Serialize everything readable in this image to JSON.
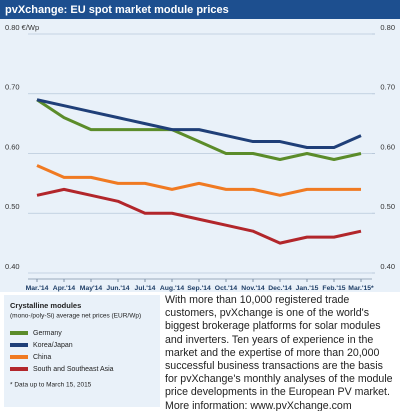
{
  "chart_data": {
    "type": "line",
    "title": "pvXchange: EU spot market module prices",
    "categories": [
      "Mar.'14",
      "Apr.'14",
      "May'14",
      "Jun.'14",
      "Jul.'14",
      "Aug.'14",
      "Sep.'14",
      "Oct.'14",
      "Nov.'14",
      "Dec.'14",
      "Jan.'15",
      "Feb.'15",
      "Mar.'15*"
    ],
    "series": [
      {
        "name": "Germany",
        "color": "#5b8c2a",
        "values": [
          0.69,
          0.66,
          0.64,
          0.64,
          0.64,
          0.64,
          0.62,
          0.6,
          0.6,
          0.59,
          0.6,
          0.59,
          0.6
        ]
      },
      {
        "name": "Korea/Japan",
        "color": "#1f3f78",
        "values": [
          0.69,
          0.68,
          0.67,
          0.66,
          0.65,
          0.64,
          0.64,
          0.63,
          0.62,
          0.62,
          0.61,
          0.61,
          0.63
        ]
      },
      {
        "name": "China",
        "color": "#f07a22",
        "values": [
          0.58,
          0.56,
          0.56,
          0.55,
          0.55,
          0.54,
          0.55,
          0.54,
          0.54,
          0.53,
          0.54,
          0.54,
          0.54
        ]
      },
      {
        "name": "South and Southeast Asia",
        "color": "#b2262b",
        "values": [
          0.53,
          0.54,
          0.53,
          0.52,
          0.5,
          0.5,
          0.49,
          0.48,
          0.47,
          0.45,
          0.46,
          0.46,
          0.47
        ]
      }
    ],
    "ylim": [
      0.4,
      0.8
    ],
    "yticks": [
      {
        "value": 0.4,
        "label": "0.40"
      },
      {
        "value": 0.5,
        "label": "0.50"
      },
      {
        "value": 0.6,
        "label": "0.60"
      },
      {
        "value": 0.7,
        "label": "0.70"
      },
      {
        "value": 0.8,
        "label": "0.80 €/Wp"
      }
    ],
    "y2lim": [
      0.4,
      0.8
    ],
    "y2ticks": [
      {
        "value": 0.4,
        "label": "0.40"
      },
      {
        "value": 0.5,
        "label": "0.50"
      },
      {
        "value": 0.6,
        "label": "0.60"
      },
      {
        "value": 0.7,
        "label": "0.70"
      },
      {
        "value": 0.8,
        "label": "0.80"
      }
    ],
    "grid": true,
    "legend_title": "Crystalline modules",
    "legend_subtitle": "(mono-/poly-Si) average net prices (EUR/Wp)",
    "note": "* Data up to March 15, 2015",
    "description": "With more than 10,000 registered trade customers, pvXchange is one of the world's biggest brokerage platforms for solar modules and inverters. Ten years of experience in the market and the expertise of more than 20,000 successful business transactions are the basis for pvXchange's monthly analyses of the module price developments in the European PV market. More information: www.pvXchange.com"
  }
}
